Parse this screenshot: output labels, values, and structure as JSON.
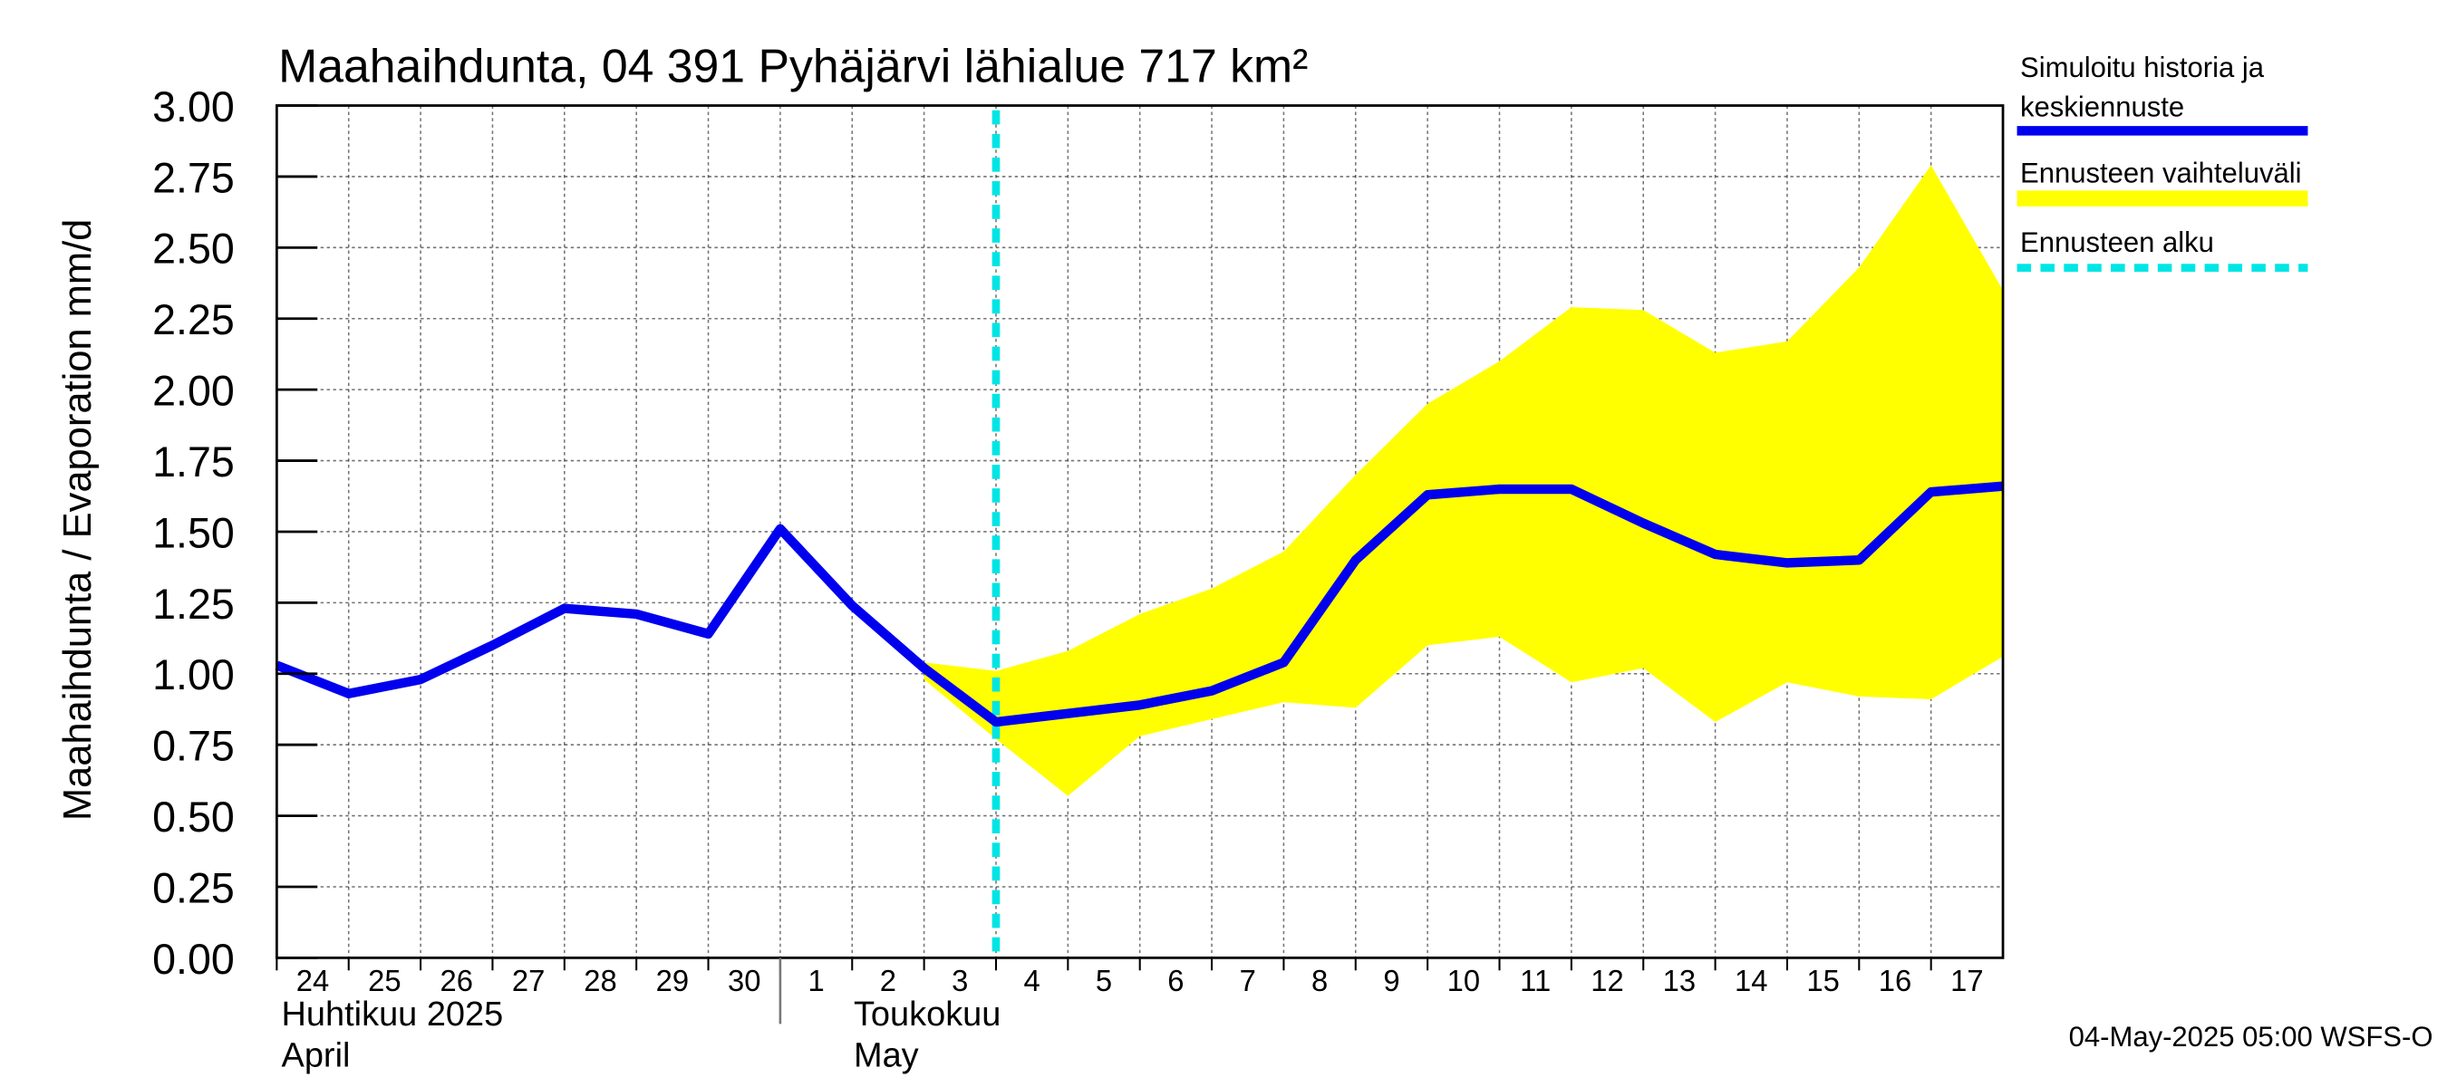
{
  "chart_data": {
    "type": "line",
    "title": "Maahaihdunta, 04 391 Pyhäjärvi lähialue 717 km²",
    "ylabel": "Maahaihdunta / Evaporation   mm/d",
    "xlabel": "",
    "ylim": [
      0,
      3.0
    ],
    "yticks": [
      "0.00",
      "0.25",
      "0.50",
      "0.75",
      "1.00",
      "1.25",
      "1.50",
      "1.75",
      "2.00",
      "2.25",
      "2.50",
      "2.75",
      "3.00"
    ],
    "x_day_labels": [
      "24",
      "25",
      "26",
      "27",
      "28",
      "29",
      "30",
      "1",
      "2",
      "3",
      "4",
      "5",
      "6",
      "7",
      "8",
      "9",
      "10",
      "11",
      "12",
      "13",
      "14",
      "15",
      "16",
      "17"
    ],
    "month_labels": [
      {
        "line1": "Huhtikuu  2025",
        "line2": "April"
      },
      {
        "line1": "Toukokuu",
        "line2": "May"
      }
    ],
    "grid": true,
    "legend_position": "right",
    "forecast_start": "2025-05-04",
    "series": [
      {
        "name": "Simuloitu historia ja keskiennuste",
        "color": "#0000ee",
        "x": [
          "2025-04-24",
          "2025-04-25",
          "2025-04-26",
          "2025-04-27",
          "2025-04-28",
          "2025-04-29",
          "2025-04-30",
          "2025-05-01",
          "2025-05-02",
          "2025-05-03",
          "2025-05-04",
          "2025-05-05",
          "2025-05-06",
          "2025-05-07",
          "2025-05-08",
          "2025-05-09",
          "2025-05-10",
          "2025-05-11",
          "2025-05-12",
          "2025-05-13",
          "2025-05-14",
          "2025-05-15",
          "2025-05-16",
          "2025-05-17",
          "2025-05-18"
        ],
        "values": [
          1.03,
          0.93,
          0.98,
          1.1,
          1.23,
          1.21,
          1.14,
          1.51,
          1.24,
          1.02,
          0.83,
          0.86,
          0.89,
          0.94,
          1.04,
          1.4,
          1.63,
          1.65,
          1.65,
          1.53,
          1.42,
          1.39,
          1.4,
          1.64,
          1.66
        ]
      },
      {
        "name": "Ennusteen vaihteluväli",
        "color": "#ffff00",
        "x": [
          "2025-05-03",
          "2025-05-04",
          "2025-05-05",
          "2025-05-06",
          "2025-05-07",
          "2025-05-08",
          "2025-05-09",
          "2025-05-10",
          "2025-05-11",
          "2025-05-12",
          "2025-05-13",
          "2025-05-14",
          "2025-05-15",
          "2025-05-16",
          "2025-05-17",
          "2025-05-18"
        ],
        "upper": [
          1.04,
          1.01,
          1.08,
          1.21,
          1.3,
          1.43,
          1.7,
          1.95,
          2.1,
          2.29,
          2.28,
          2.13,
          2.17,
          2.43,
          2.79,
          2.35
        ],
        "lower": [
          0.98,
          0.77,
          0.57,
          0.78,
          0.84,
          0.9,
          0.88,
          1.1,
          1.13,
          0.97,
          1.02,
          0.83,
          0.97,
          0.92,
          0.91,
          1.06
        ]
      },
      {
        "name": "Ennusteen alku",
        "color": "#00e5e5"
      }
    ]
  },
  "legend": {
    "sim_line1": "Simuloitu historia ja",
    "sim_line2": "keskiennuste",
    "range": "Ennusteen vaihteluväli",
    "start": "Ennusteen alku"
  },
  "footer": "04-May-2025 05:00 WSFS-O"
}
